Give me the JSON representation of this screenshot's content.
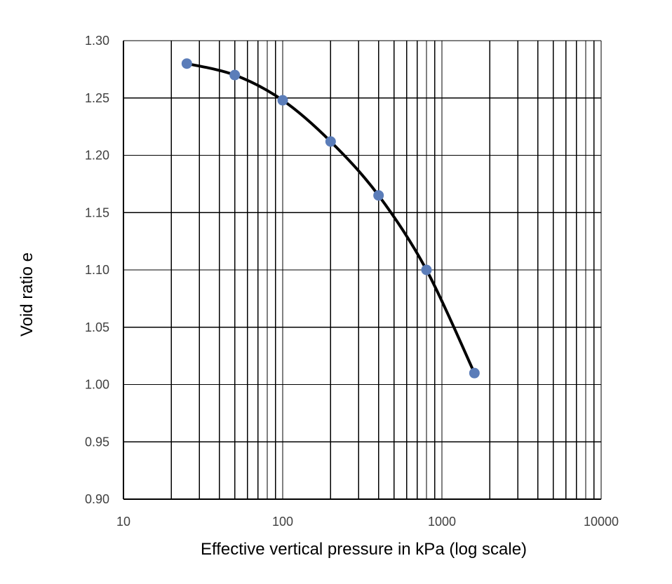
{
  "chart_data": {
    "type": "scatter",
    "xscale": "log",
    "xlim": [
      10,
      10000
    ],
    "ylim": [
      0.9,
      1.3
    ],
    "xlabel": "Effective vertical pressure in  kPa (log scale)",
    "ylabel": "Void ratio e",
    "xticks": [
      "10",
      "100",
      "1000",
      "10000"
    ],
    "yticks": [
      "0.90",
      "0.95",
      "1.00",
      "1.05",
      "1.10",
      "1.15",
      "1.20",
      "1.25",
      "1.30"
    ],
    "grid": true,
    "legend": "none",
    "series": [
      {
        "x": [
          25,
          50,
          100,
          200,
          400,
          800,
          1600
        ],
        "y": [
          1.28,
          1.27,
          1.248,
          1.212,
          1.165,
          1.1,
          1.01
        ],
        "line": "smoothed",
        "line_color": "#000000",
        "marker_color": "#5B7DB9"
      }
    ]
  }
}
